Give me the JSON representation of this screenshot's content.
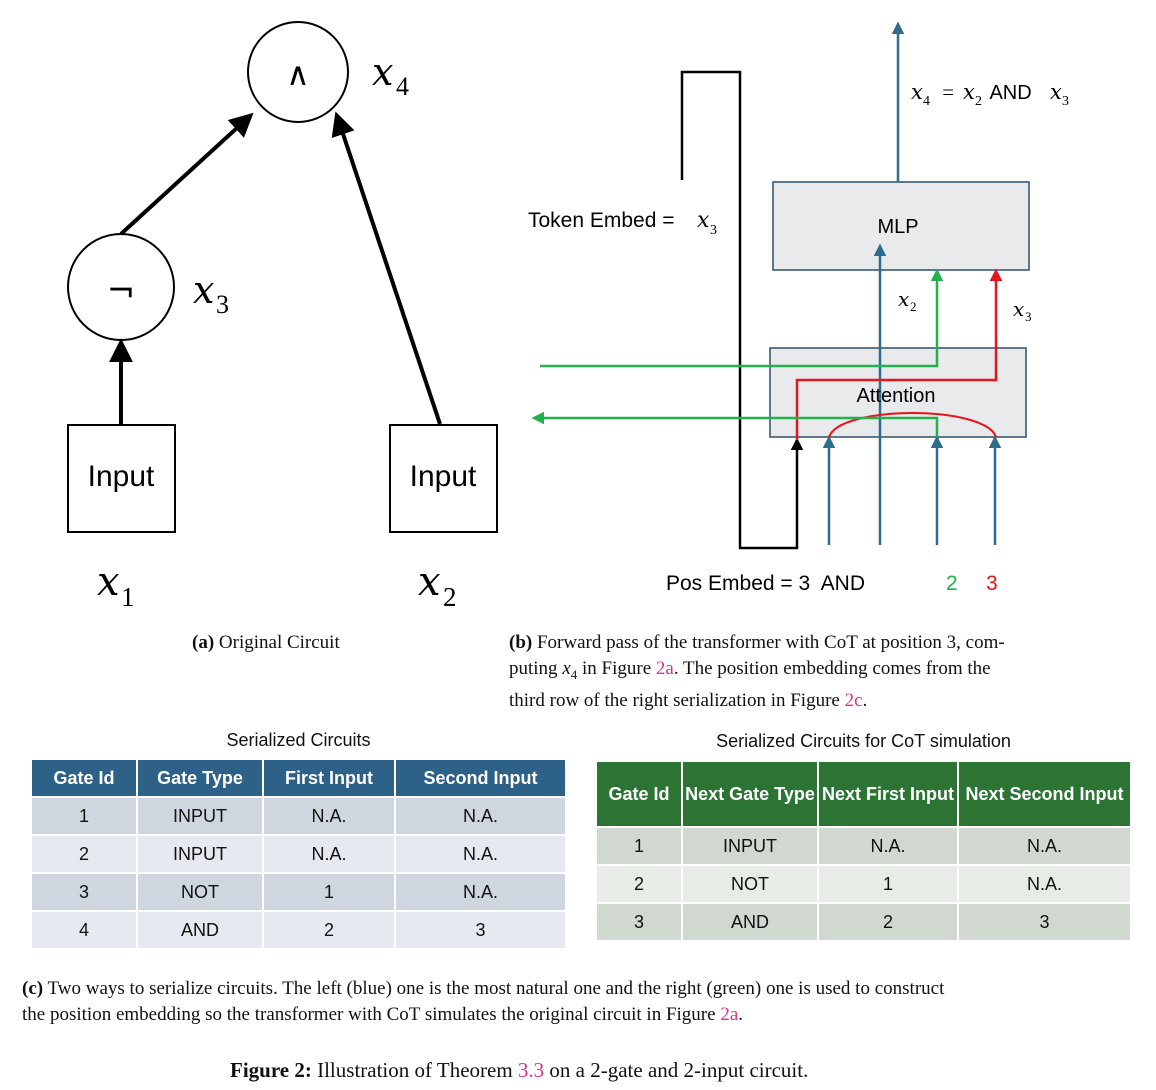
{
  "panel_a": {
    "and_symbol": "∧",
    "not_symbol": "¬",
    "x4_label": "x",
    "x4_sub": "4",
    "x3_label": "x",
    "x3_sub": "3",
    "input_left": "Input",
    "input_right": "Input",
    "x1_label": "x",
    "x1_sub": "1",
    "x2_label": "x",
    "x2_sub": "2",
    "caption_tag": "(a)",
    "caption_text": " Original Circuit"
  },
  "panel_b": {
    "output_label_lhs": "x",
    "output_label_lhs_sub": "4",
    "output_label_eq": " = ",
    "output_label_mid": "x",
    "output_label_mid_sub": "2",
    "output_label_and": " AND ",
    "output_label_rhs": "x",
    "output_label_rhs_sub": "3",
    "token_embed_text": "Token Embed =",
    "token_embed_var": "x",
    "token_embed_sub": "3",
    "mlp_label": "MLP",
    "attention_label": "Attention",
    "mlp_in_x2": "x",
    "mlp_in_x2_sub": "2",
    "mlp_in_x3": "x",
    "mlp_in_x3_sub": "3",
    "pos_embed_text": "Pos Embed = 3  AND",
    "pos_green": "2",
    "pos_red": "3",
    "colors": {
      "green": "#22b14c",
      "red": "#e8141c",
      "teal": "#2f6d8e",
      "box_fill": "#e9eaec",
      "box_stroke": "#2f4f6a"
    },
    "caption_tag": "(b)",
    "caption_line1": " Forward pass of the transformer with CoT at position 3, com-",
    "caption_line2_pre": "puting ",
    "caption_line2_var": "x",
    "caption_line2_sub": "4",
    "caption_line2_mid": " in Figure ",
    "caption_line2_link": "2a",
    "caption_line2_post": ".  The position embedding comes from the",
    "caption_line3_pre": "third row of the right serialization in Figure ",
    "caption_line3_link": "2c",
    "caption_line3_post": "."
  },
  "blue_table": {
    "title": "Serialized Circuits",
    "headers": [
      "Gate Id",
      "Gate Type",
      "First Input",
      "Second Input"
    ],
    "rows": [
      [
        "1",
        "INPUT",
        "N.A.",
        "N.A."
      ],
      [
        "2",
        "INPUT",
        "N.A.",
        "N.A."
      ],
      [
        "3",
        "NOT",
        "1",
        "N.A."
      ],
      [
        "4",
        "AND",
        "2",
        "3"
      ]
    ]
  },
  "green_table": {
    "title": "Serialized Circuits for CoT simulation",
    "headers": [
      "Gate Id",
      "Next Gate Type",
      "Next First Input",
      "Next Second Input"
    ],
    "rows": [
      [
        "1",
        "INPUT",
        "N.A.",
        "N.A."
      ],
      [
        "2",
        "NOT",
        "1",
        "N.A."
      ],
      [
        "3",
        "AND",
        "2",
        "3"
      ]
    ]
  },
  "caption_c": {
    "tag": "(c)",
    "line1": " Two ways to serialize circuits. The left (blue) one is the most natural one and the right (green) one is used to construct",
    "line2_pre": "the position embedding so the transformer with CoT simulates the original circuit in Figure ",
    "line2_link": "2a",
    "line2_post": "."
  },
  "figure_caption": {
    "label": "Figure 2:",
    "text_pre": " Illustration of Theorem ",
    "link": "3.3",
    "text_post": " on a 2-gate and 2-input circuit."
  }
}
